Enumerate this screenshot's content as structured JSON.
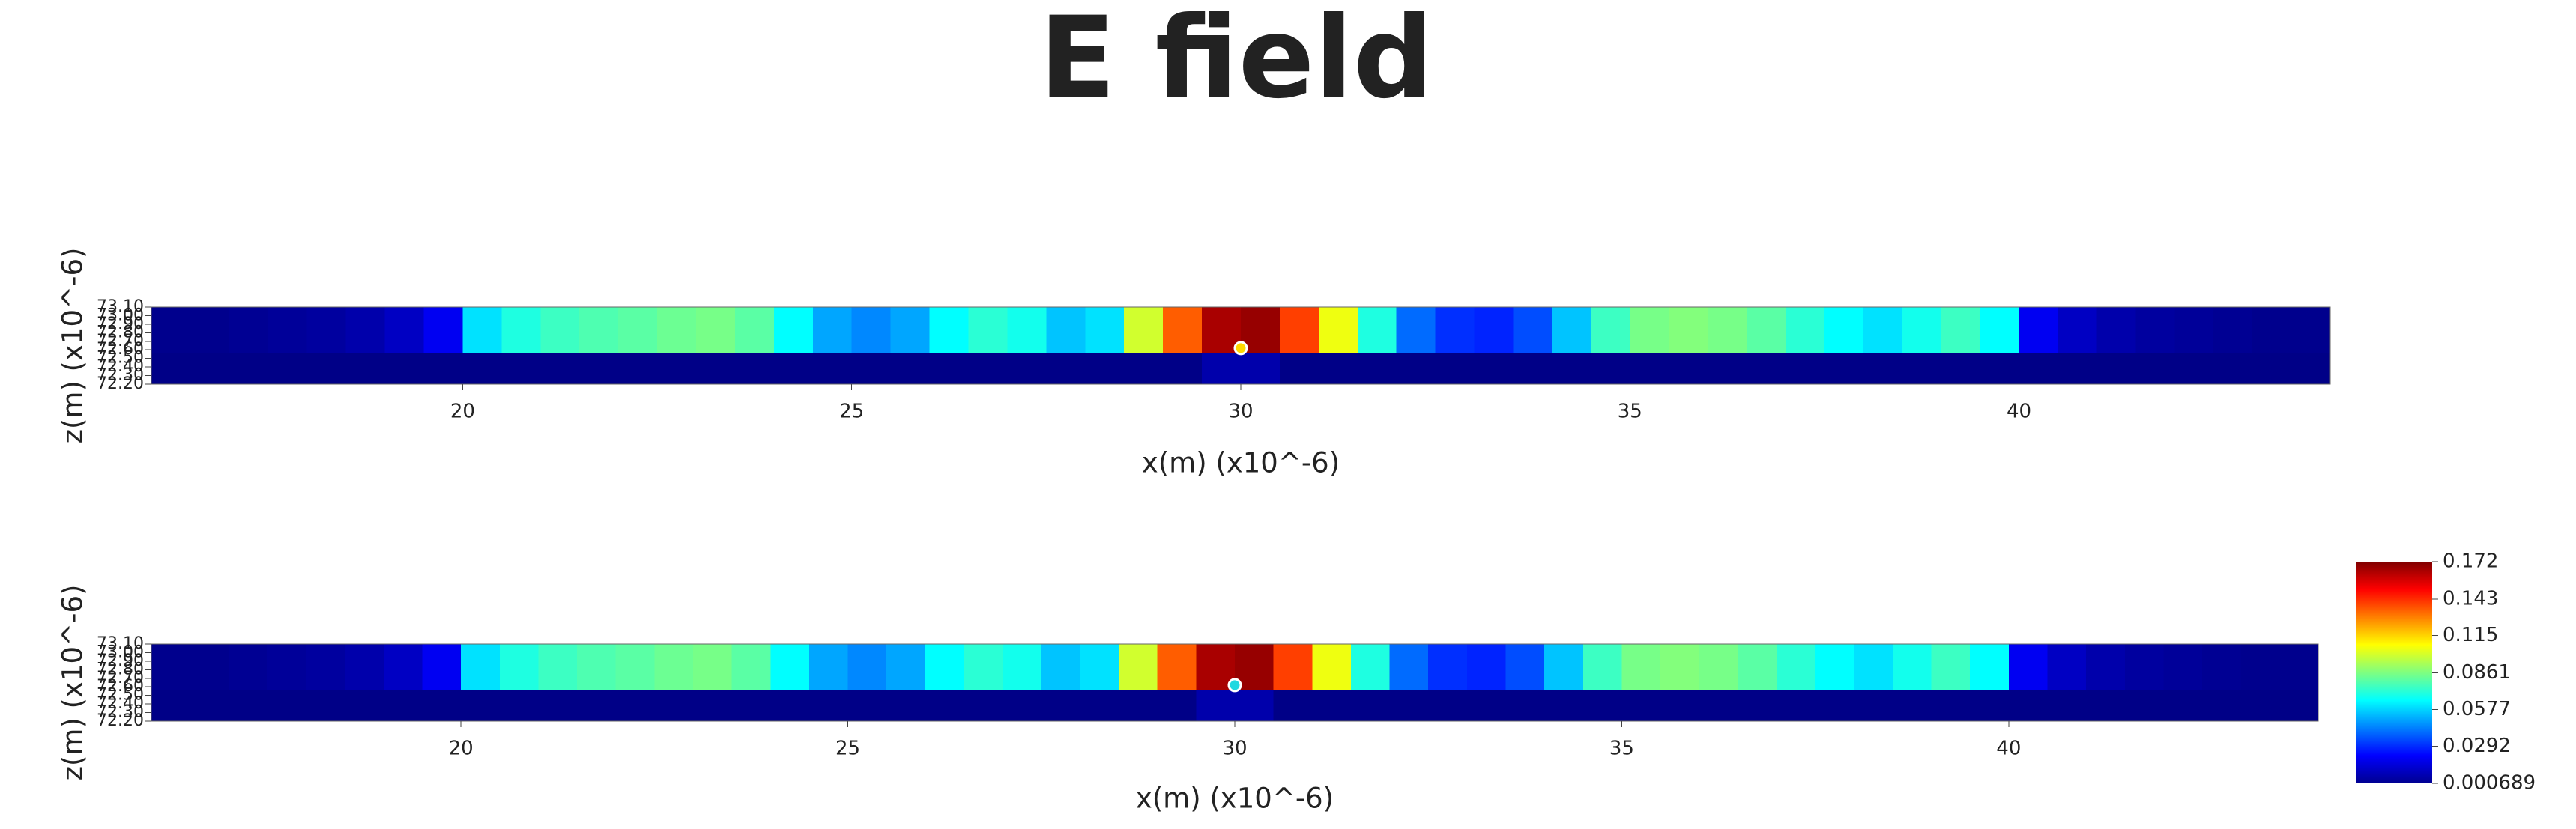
{
  "title": "E field",
  "chart_data": [
    {
      "type": "heatmap",
      "x_label": "x(m) (x10^-6)",
      "y_label": "z(m) (x10^-6)",
      "x": [
        16,
        16.5,
        17,
        17.5,
        18,
        18.5,
        19,
        19.5,
        20,
        20.5,
        21,
        21.5,
        22,
        22.5,
        23,
        23.5,
        24,
        24.5,
        25,
        25.5,
        26,
        26.5,
        27,
        27.5,
        28,
        28.5,
        29,
        29.5,
        30,
        30.5,
        31,
        31.5,
        32,
        32.5,
        33,
        33.5,
        34,
        34.5,
        35,
        35.5,
        36,
        36.5,
        37,
        37.5,
        38,
        38.5,
        39,
        39.5,
        40,
        40.5,
        41,
        41.5,
        42,
        42.5,
        43,
        43.5,
        44
      ],
      "z": [
        72.2,
        72.56,
        73.1
      ],
      "values": [
        [
          0.002,
          0.002,
          0.002,
          0.002,
          0.002,
          0.002,
          0.002,
          0.002,
          0.002,
          0.002,
          0.002,
          0.002,
          0.002,
          0.002,
          0.002,
          0.002,
          0.002,
          0.002,
          0.002,
          0.002,
          0.002,
          0.002,
          0.002,
          0.002,
          0.002,
          0.002,
          0.002,
          0.008,
          0.008,
          0.002,
          0.002,
          0.002,
          0.002,
          0.002,
          0.002,
          0.002,
          0.002,
          0.002,
          0.002,
          0.002,
          0.002,
          0.002,
          0.002,
          0.002,
          0.002,
          0.002,
          0.002,
          0.002,
          0.002,
          0.002,
          0.002,
          0.002,
          0.002,
          0.002,
          0.002,
          0.002
        ],
        [
          0.003,
          0.003,
          0.004,
          0.005,
          0.006,
          0.008,
          0.012,
          0.02,
          0.06,
          0.07,
          0.075,
          0.078,
          0.08,
          0.083,
          0.085,
          0.08,
          0.065,
          0.05,
          0.045,
          0.05,
          0.065,
          0.072,
          0.068,
          0.055,
          0.06,
          0.1,
          0.135,
          0.165,
          0.168,
          0.14,
          0.105,
          0.07,
          0.04,
          0.03,
          0.028,
          0.035,
          0.055,
          0.075,
          0.085,
          0.087,
          0.085,
          0.08,
          0.072,
          0.065,
          0.06,
          0.068,
          0.075,
          0.065,
          0.02,
          0.012,
          0.008,
          0.006,
          0.005,
          0.004,
          0.003,
          0.003
        ]
      ],
      "xlim": [
        16,
        44
      ],
      "xticks": [
        20,
        25,
        30,
        35,
        40
      ],
      "ylim": [
        72.2,
        73.1
      ],
      "yticks": [
        {
          "value": 72.2,
          "label": "72.20"
        },
        {
          "value": 72.3,
          "label": "72.30"
        },
        {
          "value": 72.4,
          "label": "72.40"
        },
        {
          "value": 72.5,
          "label": "72.50"
        },
        {
          "value": 72.6,
          "label": "72.60"
        },
        {
          "value": 72.7,
          "label": "72.70"
        },
        {
          "value": 72.8,
          "label": "72.80"
        },
        {
          "value": 72.9,
          "label": "72.90"
        },
        {
          "value": 73.0,
          "label": "73.00"
        },
        {
          "value": 73.1,
          "label": "73.10"
        }
      ],
      "marker": [
        30,
        72.62
      ],
      "marker_color": "#ffd800"
    },
    {
      "type": "heatmap",
      "x_label": "x(m) (x10^-6)",
      "y_label": "z(m) (x10^-6)",
      "x": [
        16,
        16.5,
        17,
        17.5,
        18,
        18.5,
        19,
        19.5,
        20,
        20.5,
        21,
        21.5,
        22,
        22.5,
        23,
        23.5,
        24,
        24.5,
        25,
        25.5,
        26,
        26.5,
        27,
        27.5,
        28,
        28.5,
        29,
        29.5,
        30,
        30.5,
        31,
        31.5,
        32,
        32.5,
        33,
        33.5,
        34,
        34.5,
        35,
        35.5,
        36,
        36.5,
        37,
        37.5,
        38,
        38.5,
        39,
        39.5,
        40,
        40.5,
        41,
        41.5,
        42,
        42.5,
        43,
        43.5,
        44
      ],
      "z": [
        72.2,
        72.56,
        73.1
      ],
      "values": [
        [
          0.002,
          0.002,
          0.002,
          0.002,
          0.002,
          0.002,
          0.002,
          0.002,
          0.002,
          0.002,
          0.002,
          0.002,
          0.002,
          0.002,
          0.002,
          0.002,
          0.002,
          0.002,
          0.002,
          0.002,
          0.002,
          0.002,
          0.002,
          0.002,
          0.002,
          0.002,
          0.002,
          0.008,
          0.008,
          0.002,
          0.002,
          0.002,
          0.002,
          0.002,
          0.002,
          0.002,
          0.002,
          0.002,
          0.002,
          0.002,
          0.002,
          0.002,
          0.002,
          0.002,
          0.002,
          0.002,
          0.002,
          0.002,
          0.002,
          0.002,
          0.002,
          0.002,
          0.002,
          0.002,
          0.002,
          0.002
        ],
        [
          0.003,
          0.003,
          0.004,
          0.005,
          0.006,
          0.008,
          0.012,
          0.02,
          0.06,
          0.07,
          0.075,
          0.078,
          0.08,
          0.083,
          0.085,
          0.08,
          0.065,
          0.05,
          0.045,
          0.05,
          0.065,
          0.072,
          0.068,
          0.055,
          0.06,
          0.1,
          0.135,
          0.165,
          0.168,
          0.14,
          0.105,
          0.07,
          0.04,
          0.03,
          0.028,
          0.035,
          0.055,
          0.075,
          0.085,
          0.087,
          0.085,
          0.08,
          0.072,
          0.065,
          0.06,
          0.068,
          0.075,
          0.065,
          0.02,
          0.012,
          0.008,
          0.006,
          0.005,
          0.004,
          0.003,
          0.003
        ]
      ],
      "xlim": [
        16,
        44
      ],
      "xticks": [
        20,
        25,
        30,
        35,
        40
      ],
      "ylim": [
        72.2,
        73.1
      ],
      "yticks": [
        {
          "value": 72.2,
          "label": "72.20"
        },
        {
          "value": 72.3,
          "label": "72.30"
        },
        {
          "value": 72.4,
          "label": "72.40"
        },
        {
          "value": 72.5,
          "label": "72.50"
        },
        {
          "value": 72.6,
          "label": "72.60"
        },
        {
          "value": 72.7,
          "label": "72.70"
        },
        {
          "value": 72.8,
          "label": "72.80"
        },
        {
          "value": 72.9,
          "label": "72.90"
        },
        {
          "value": 73.0,
          "label": "73.00"
        },
        {
          "value": 73.1,
          "label": "73.10"
        }
      ],
      "marker": [
        30,
        72.62
      ],
      "marker_color": "#22d8e0",
      "colorbar": {
        "clim": [
          0.000689,
          0.172
        ],
        "ticks": [
          0.172,
          0.143,
          0.115,
          0.0861,
          0.0577,
          0.0292,
          0.000689
        ]
      }
    }
  ]
}
